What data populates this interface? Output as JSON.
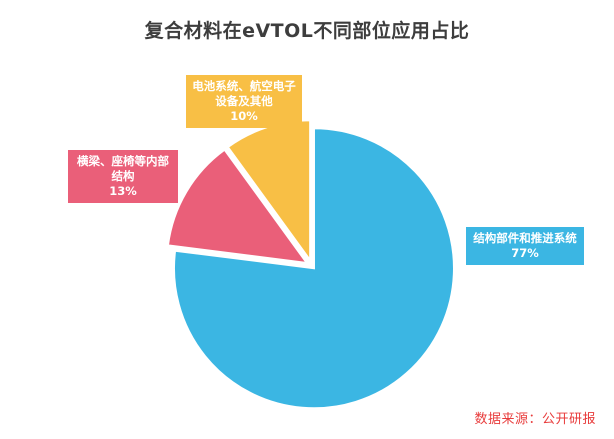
{
  "chart_data": {
    "type": "pie",
    "title": "复合材料在eVTOL不同部位应用占比",
    "slices": [
      {
        "label": "结构部件和推进系统",
        "value": 77,
        "value_label": "77%",
        "color": "#3bb6e3"
      },
      {
        "label": "横梁、座椅等内部结构",
        "value": 13,
        "value_label": "13%",
        "color": "#ea5f79"
      },
      {
        "label": "电池系统、航空电子设备及其他",
        "value": 10,
        "value_label": "10%",
        "color": "#f8bf45"
      }
    ]
  },
  "source": "数据来源：公开研报"
}
